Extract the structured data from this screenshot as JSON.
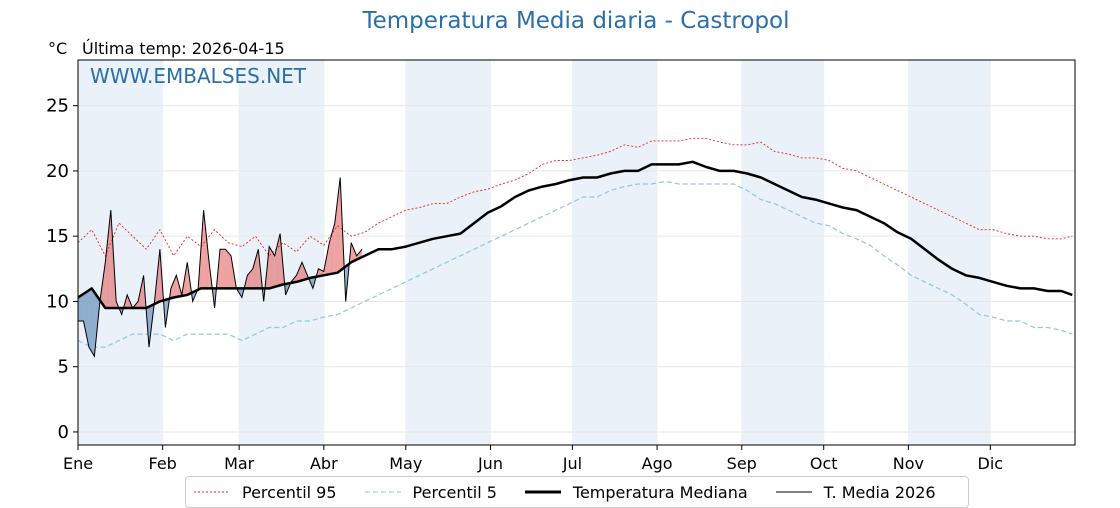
{
  "chart_data": {
    "type": "line",
    "title": "Temperatura Media diaria - Castropol",
    "unit_label": "°C",
    "last_temp_label": "Última temp: 2026-04-15",
    "watermark": "WWW.EMBALSES.NET",
    "ylim": [
      -1,
      28.5
    ],
    "yticks": [
      0,
      5,
      10,
      15,
      20,
      25
    ],
    "xlim": [
      0,
      365
    ],
    "months": [
      "Ene",
      "Feb",
      "Mar",
      "Abr",
      "May",
      "Jun",
      "Jul",
      "Ago",
      "Sep",
      "Oct",
      "Nov",
      "Dic"
    ],
    "month_starts": [
      0,
      31,
      59,
      90,
      120,
      151,
      181,
      212,
      243,
      273,
      304,
      334
    ],
    "grid": true,
    "legend_position": "bottom",
    "colors": {
      "p95": "#e8221b",
      "p5": "#8fc6db",
      "median": "#000000",
      "current": "#000000",
      "above": "#e05555",
      "below": "#4477aa",
      "band": "#eaf1f8"
    },
    "series": [
      {
        "name": "Percentil 95",
        "key": "p95",
        "x": [
          0,
          5,
          10,
          15,
          20,
          25,
          30,
          35,
          40,
          45,
          50,
          55,
          60,
          65,
          70,
          75,
          80,
          85,
          90,
          95,
          100,
          105,
          110,
          115,
          120,
          125,
          130,
          135,
          140,
          145,
          150,
          155,
          160,
          165,
          170,
          175,
          180,
          185,
          190,
          195,
          200,
          205,
          210,
          215,
          220,
          225,
          230,
          235,
          240,
          245,
          250,
          255,
          260,
          265,
          270,
          275,
          280,
          285,
          290,
          295,
          300,
          305,
          310,
          315,
          320,
          325,
          330,
          335,
          340,
          345,
          350,
          355,
          360,
          364
        ],
        "values": [
          14.5,
          15.5,
          13.5,
          16,
          15,
          14,
          15.5,
          13.5,
          15,
          14.2,
          15.5,
          14.5,
          14.2,
          15,
          13.5,
          14.5,
          13.8,
          15,
          14.3,
          15.8,
          15,
          15.3,
          16,
          16.5,
          17,
          17.2,
          17.5,
          17.5,
          18,
          18.4,
          18.6,
          19,
          19.3,
          19.8,
          20.5,
          20.8,
          20.8,
          21,
          21.2,
          21.5,
          22,
          21.8,
          22.3,
          22.3,
          22.3,
          22.5,
          22.5,
          22.2,
          22,
          22,
          22.2,
          21.5,
          21.3,
          21,
          21,
          20.8,
          20.2,
          20,
          19.5,
          19,
          18.5,
          18,
          17.5,
          17,
          16.5,
          16,
          15.5,
          15.5,
          15.2,
          15,
          15,
          14.8,
          14.8,
          15
        ]
      },
      {
        "name": "Percentil 5",
        "key": "p5",
        "x": [
          0,
          5,
          10,
          15,
          20,
          25,
          30,
          35,
          40,
          45,
          50,
          55,
          60,
          65,
          70,
          75,
          80,
          85,
          90,
          95,
          100,
          105,
          110,
          115,
          120,
          125,
          130,
          135,
          140,
          145,
          150,
          155,
          160,
          165,
          170,
          175,
          180,
          185,
          190,
          195,
          200,
          205,
          210,
          215,
          220,
          225,
          230,
          235,
          240,
          245,
          250,
          255,
          260,
          265,
          270,
          275,
          280,
          285,
          290,
          295,
          300,
          305,
          310,
          315,
          320,
          325,
          330,
          335,
          340,
          345,
          350,
          355,
          360,
          364
        ],
        "values": [
          7,
          6.5,
          6.5,
          7,
          7.5,
          7.5,
          7.5,
          7,
          7.5,
          7.5,
          7.5,
          7.5,
          7,
          7.5,
          8,
          8,
          8.5,
          8.5,
          8.8,
          9,
          9.5,
          10,
          10.5,
          11,
          11.5,
          12,
          12.5,
          13,
          13.5,
          14,
          14.5,
          15,
          15.5,
          16,
          16.5,
          17,
          17.5,
          18,
          18,
          18.5,
          18.8,
          19,
          19,
          19.2,
          19,
          19,
          19,
          19,
          19,
          18.5,
          17.8,
          17.5,
          17,
          16.5,
          16,
          15.8,
          15.2,
          14.8,
          14.3,
          13.5,
          12.8,
          12,
          11.5,
          11,
          10.5,
          9.8,
          9,
          8.8,
          8.5,
          8.5,
          8,
          8,
          7.8,
          7.5
        ]
      },
      {
        "name": "Temperatura Mediana",
        "key": "median",
        "x": [
          0,
          5,
          10,
          15,
          20,
          25,
          30,
          35,
          40,
          45,
          50,
          55,
          60,
          65,
          70,
          75,
          80,
          85,
          90,
          95,
          100,
          105,
          110,
          115,
          120,
          125,
          130,
          135,
          140,
          145,
          150,
          155,
          160,
          165,
          170,
          175,
          180,
          185,
          190,
          195,
          200,
          205,
          210,
          215,
          220,
          225,
          230,
          235,
          240,
          245,
          250,
          255,
          260,
          265,
          270,
          275,
          280,
          285,
          290,
          295,
          300,
          305,
          310,
          315,
          320,
          325,
          330,
          335,
          340,
          345,
          350,
          355,
          360,
          364
        ],
        "values": [
          10.3,
          11,
          9.5,
          9.5,
          9.5,
          9.5,
          10,
          10.3,
          10.5,
          11,
          11,
          11,
          11,
          11,
          11,
          11.3,
          11.5,
          11.8,
          12,
          12.2,
          13,
          13.5,
          14,
          14,
          14.2,
          14.5,
          14.8,
          15,
          15.2,
          16,
          16.8,
          17.3,
          18,
          18.5,
          18.8,
          19,
          19.3,
          19.5,
          19.5,
          19.8,
          20,
          20,
          20.5,
          20.5,
          20.5,
          20.7,
          20.3,
          20,
          20,
          19.8,
          19.5,
          19,
          18.5,
          18,
          17.8,
          17.5,
          17.2,
          17,
          16.5,
          16,
          15.3,
          14.8,
          14,
          13.2,
          12.5,
          12,
          11.8,
          11.5,
          11.2,
          11,
          11,
          10.8,
          10.8,
          10.5
        ]
      },
      {
        "name": "T. Media 2026",
        "key": "current",
        "x": [
          0,
          2,
          4,
          6,
          8,
          10,
          12,
          14,
          16,
          18,
          20,
          22,
          24,
          26,
          28,
          30,
          32,
          34,
          36,
          38,
          40,
          42,
          44,
          46,
          48,
          50,
          52,
          54,
          56,
          58,
          60,
          62,
          64,
          66,
          68,
          70,
          72,
          74,
          76,
          78,
          80,
          82,
          84,
          86,
          88,
          90,
          92,
          94,
          96,
          98,
          100,
          102,
          104
        ],
        "values": [
          8.5,
          8.5,
          6.5,
          5.8,
          10,
          13,
          17,
          10,
          9,
          10.5,
          9.5,
          10,
          12,
          6.5,
          10,
          14,
          8,
          11,
          12,
          10.5,
          13,
          10,
          11,
          17,
          13,
          9.5,
          14,
          14,
          13.5,
          11,
          10.3,
          12,
          12.5,
          14,
          10,
          14.2,
          13.5,
          15.2,
          10.5,
          11.5,
          12,
          13,
          12,
          11,
          12.5,
          12.3,
          14.5,
          16,
          19.5,
          10,
          14.5,
          13.5,
          14
        ]
      }
    ]
  }
}
